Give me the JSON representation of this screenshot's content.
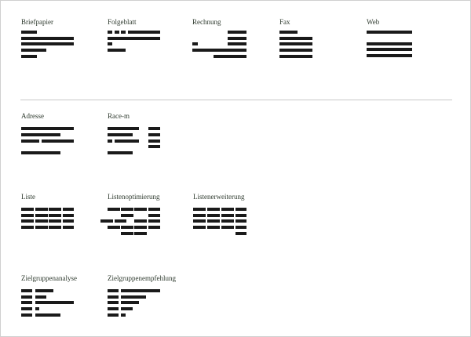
{
  "templates": [
    {
      "id": "briefpapier",
      "label": "Briefpapier"
    },
    {
      "id": "folgeblatt",
      "label": "Folgeblatt"
    },
    {
      "id": "rechnung",
      "label": "Rechnung"
    },
    {
      "id": "fax",
      "label": "Fax"
    },
    {
      "id": "web",
      "label": "Web"
    },
    {
      "id": "adresse",
      "label": "Adresse"
    },
    {
      "id": "race-m",
      "label": "Race-m"
    },
    {
      "id": "liste",
      "label": "Liste"
    },
    {
      "id": "listenoptimierung",
      "label": "Listenoptimierung"
    },
    {
      "id": "listenerweiterung",
      "label": "Listenerweiterung"
    },
    {
      "id": "zielgruppenanalyse",
      "label": "Zielgruppenanalyse"
    },
    {
      "id": "zielgruppenempfehlung",
      "label": "Zielgruppenempfehlung"
    }
  ],
  "colors": {
    "bar": "#1a1a1a",
    "label": "#2e3a2e",
    "divider": "#c8c8c8"
  }
}
